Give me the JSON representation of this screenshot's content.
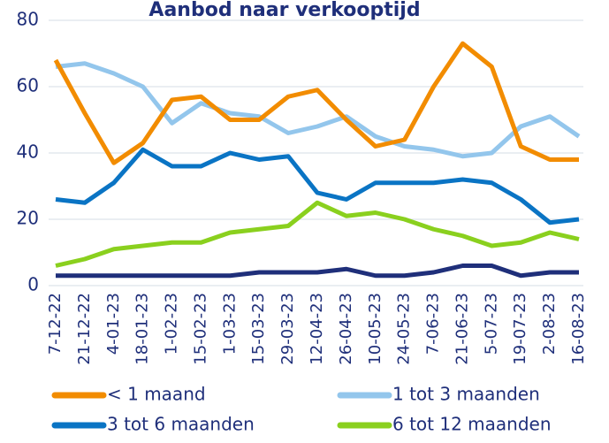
{
  "chart_data": {
    "type": "line",
    "title": "Aanbod naar verkooptijd",
    "categories": [
      "7-12-22",
      "21-12-22",
      "4-01-23",
      "18-01-23",
      "1-02-23",
      "15-02-23",
      "1-03-23",
      "15-03-23",
      "29-03-23",
      "12-04-23",
      "26-04-23",
      "10-05-23",
      "24-05-23",
      "7-06-23",
      "21-06-23",
      "5-07-23",
      "19-07-23",
      "2-08-23",
      "16-08-23"
    ],
    "series": [
      {
        "name": "< 1 maand",
        "color": "#f28c00",
        "values": [
          68,
          52,
          37,
          43,
          56,
          57,
          50,
          50,
          57,
          59,
          50,
          42,
          44,
          60,
          73,
          66,
          42,
          38,
          38
        ]
      },
      {
        "name": "1 tot 3 maanden",
        "color": "#93c6ec",
        "values": [
          66,
          67,
          64,
          60,
          49,
          55,
          52,
          51,
          46,
          48,
          51,
          45,
          42,
          41,
          39,
          40,
          48,
          51,
          45
        ]
      },
      {
        "name": "3 tot 6 maanden",
        "color": "#0a74c4",
        "values": [
          26,
          25,
          31,
          41,
          36,
          36,
          40,
          38,
          39,
          28,
          26,
          31,
          31,
          31,
          32,
          31,
          26,
          19,
          20
        ]
      },
      {
        "name": "6 tot 12 maanden",
        "color": "#8ad01e",
        "values": [
          6,
          8,
          11,
          12,
          13,
          13,
          16,
          17,
          18,
          25,
          21,
          22,
          20,
          17,
          15,
          12,
          13,
          16,
          14
        ]
      },
      {
        "color": "#1f2f7a",
        "values": [
          3,
          3,
          3,
          3,
          3,
          3,
          3,
          4,
          4,
          4,
          5,
          3,
          3,
          4,
          6,
          6,
          3,
          4,
          4
        ]
      }
    ],
    "ylim": [
      0,
      80
    ],
    "yticks": [
      0,
      20,
      40,
      60,
      80
    ],
    "grid": true
  }
}
